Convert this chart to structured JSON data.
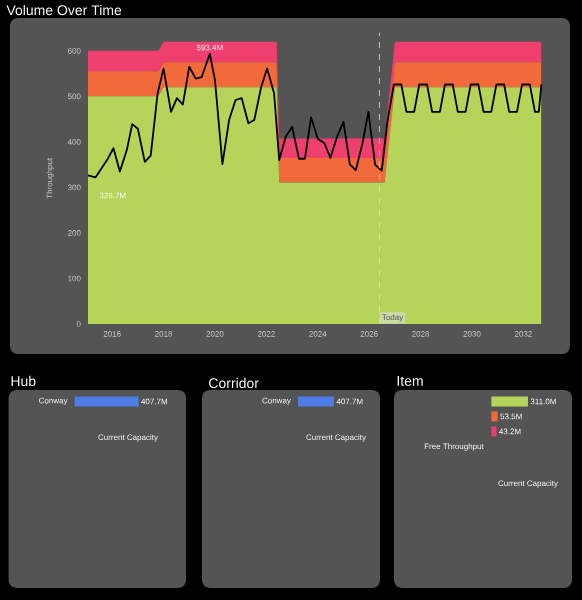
{
  "chart_data": [
    {
      "type": "area",
      "title": "Volume Over Time",
      "ylabel": "Throughput",
      "stacked": true,
      "xlim": [
        2015.06,
        2032.7
      ],
      "ylim": [
        0,
        640
      ],
      "xticks": [
        2016,
        2018,
        2020,
        2022,
        2024,
        2026,
        2028,
        2030,
        2032
      ],
      "yticks": [
        0,
        100,
        200,
        300,
        400,
        500,
        600
      ],
      "series": [
        {
          "type": "area",
          "color": "#b6d35a",
          "x": [
            2015.06,
            2017.8,
            2018.0,
            2022.4,
            2022.5,
            2026.6,
            2027.0,
            2032.7
          ],
          "values": [
            500,
            500,
            520,
            520,
            311,
            311,
            520,
            520
          ]
        },
        {
          "type": "area",
          "color": "#f26a3b",
          "x": [
            2015.06,
            2017.8,
            2018.0,
            2022.4,
            2022.5,
            2026.6,
            2027.0,
            2032.7
          ],
          "values": [
            55,
            55,
            55,
            55,
            53.5,
            53.5,
            55,
            55
          ]
        },
        {
          "type": "area",
          "color": "#ef3f6f",
          "x": [
            2015.06,
            2017.8,
            2018.0,
            2022.4,
            2022.5,
            2026.6,
            2027.0,
            2032.7
          ],
          "values": [
            45,
            45,
            45,
            45,
            43.2,
            43.2,
            45,
            45
          ]
        },
        {
          "type": "line",
          "color": "#000000",
          "x": [
            2015.06,
            2015.35,
            2015.8,
            2016.05,
            2016.3,
            2016.57,
            2016.78,
            2017.0,
            2017.27,
            2017.5,
            2017.77,
            2018.0,
            2018.29,
            2018.52,
            2018.75,
            2019.0,
            2019.25,
            2019.48,
            2019.8,
            2020.0,
            2020.29,
            2020.55,
            2020.8,
            2021.04,
            2021.3,
            2021.53,
            2021.8,
            2022.03,
            2022.3,
            2022.5,
            2022.75,
            2023.0,
            2023.27,
            2023.5,
            2023.74,
            2024.0,
            2024.26,
            2024.49,
            2024.75,
            2025.0,
            2025.25,
            2025.48,
            2025.74,
            2025.97,
            2026.23,
            2026.49,
            2026.7,
            2026.96,
            2027.25,
            2027.45,
            2027.75,
            2027.95,
            2028.25,
            2028.45,
            2028.75,
            2028.95,
            2029.25,
            2029.45,
            2029.75,
            2029.95,
            2030.25,
            2030.45,
            2030.75,
            2030.95,
            2031.25,
            2031.45,
            2031.75,
            2031.95,
            2032.25,
            2032.45,
            2032.6,
            2032.7
          ],
          "values": [
            326.7,
            322,
            360,
            386,
            335,
            382,
            439,
            429,
            356,
            370,
            507,
            561,
            466,
            496,
            482,
            565,
            539,
            542,
            593.4,
            536,
            351,
            448,
            492,
            496,
            441,
            448,
            521,
            561,
            507,
            360,
            411,
            433,
            363,
            363,
            454,
            407,
            397,
            365,
            411,
            444,
            350,
            338,
            397,
            466,
            350,
            337,
            441,
            526,
            526,
            466,
            466,
            526,
            526,
            466,
            466,
            526,
            526,
            466,
            466,
            526,
            526,
            466,
            466,
            526,
            526,
            466,
            466,
            526,
            526,
            466,
            466,
            526
          ]
        }
      ],
      "ref_lines": [
        {
          "axis": "x",
          "value": 2026.4,
          "label": "Today",
          "color": "#dddddd",
          "line_style": "dashed"
        }
      ],
      "annotations": [
        {
          "text": "326.7M",
          "x": 2015.06,
          "y": 326.7
        },
        {
          "text": "593.4M",
          "x": 2019.8,
          "y": 593.4
        }
      ]
    },
    {
      "type": "bar",
      "orientation": "horizontal",
      "title": "Hub",
      "categories": [
        "Conway"
      ],
      "values": [
        407.7
      ],
      "color": "#4f7de8",
      "value_labels": [
        "407.7M"
      ],
      "annotations": [
        "Current Capacity"
      ]
    },
    {
      "type": "bar",
      "orientation": "horizontal",
      "title": "Corridor",
      "categories": [
        "Conway"
      ],
      "values": [
        407.7
      ],
      "color": "#4f7de8",
      "value_labels": [
        "407.7M"
      ],
      "annotations": [
        "Current Capacity"
      ]
    },
    {
      "type": "bar",
      "orientation": "horizontal",
      "title": "Item",
      "categories": [
        null,
        null,
        null
      ],
      "values": [
        311.0,
        53.5,
        43.2
      ],
      "colors": [
        "#b6d35a",
        "#f26a3b",
        "#ef3f6f"
      ],
      "value_labels": [
        "311.0M",
        "53.5M",
        "43.2M"
      ],
      "annotations": [
        "Free Throughput",
        "Current Capacity"
      ]
    }
  ]
}
